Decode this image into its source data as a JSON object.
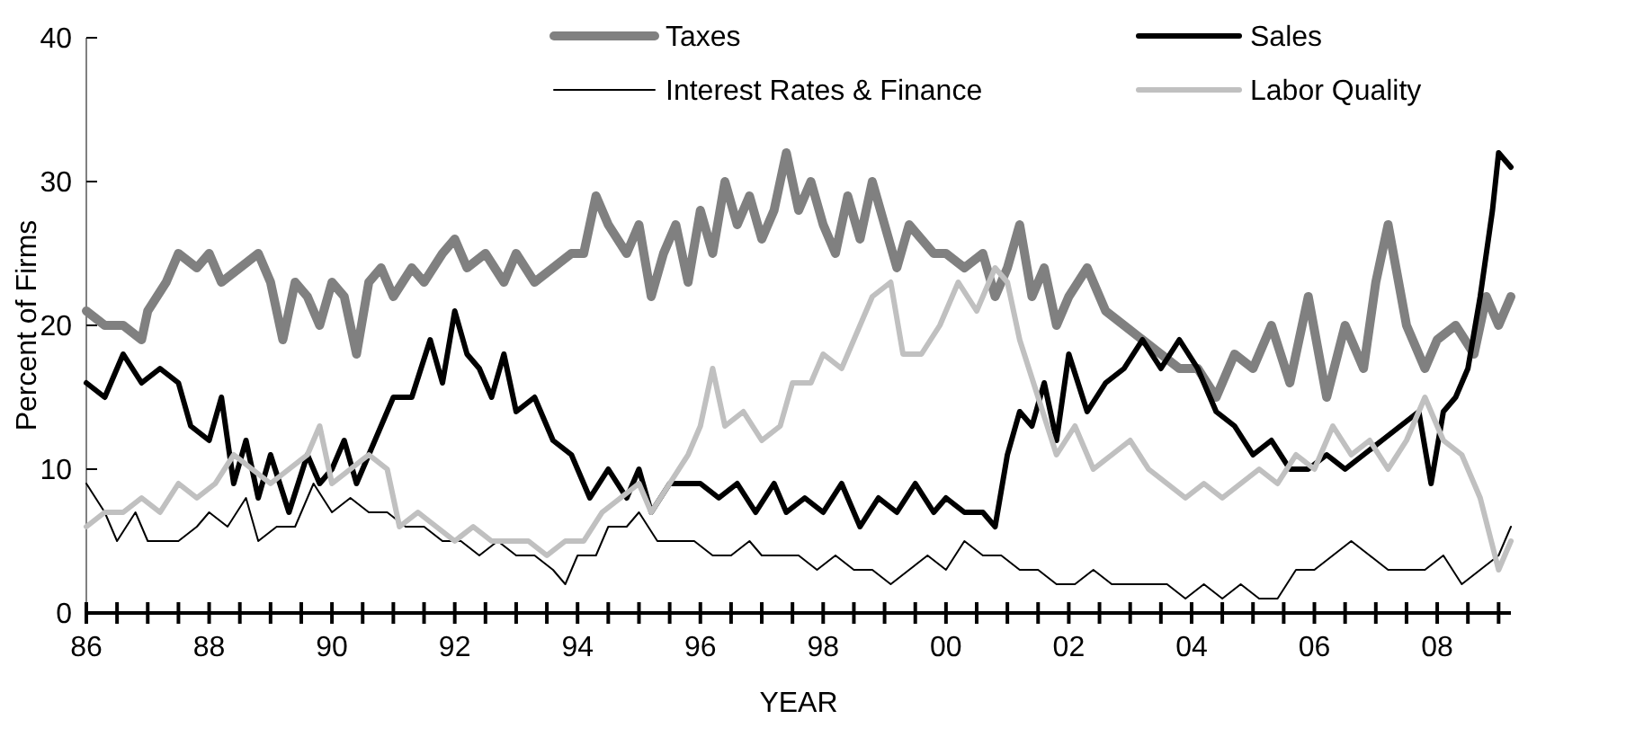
{
  "chart_data": {
    "type": "line",
    "xlabel": "YEAR",
    "ylabel": "Percent of Firms",
    "legend": "top",
    "grid": false,
    "marker": "none",
    "line_style": "solid",
    "xlim": [
      1986,
      2009.2
    ],
    "ylim": [
      0,
      40
    ],
    "yticks": [
      0,
      10,
      20,
      30,
      40
    ],
    "xticks": [
      {
        "value": 1986,
        "label": "86"
      },
      {
        "value": 1986.5,
        "label": null
      },
      {
        "value": 1987,
        "label": null
      },
      {
        "value": 1987.5,
        "label": null
      },
      {
        "value": 1988,
        "label": "88"
      },
      {
        "value": 1988.5,
        "label": null
      },
      {
        "value": 1989,
        "label": null
      },
      {
        "value": 1989.5,
        "label": null
      },
      {
        "value": 1990,
        "label": "90"
      },
      {
        "value": 1990.5,
        "label": null
      },
      {
        "value": 1991,
        "label": null
      },
      {
        "value": 1991.5,
        "label": null
      },
      {
        "value": 1992,
        "label": "92"
      },
      {
        "value": 1992.5,
        "label": null
      },
      {
        "value": 1993,
        "label": null
      },
      {
        "value": 1993.5,
        "label": null
      },
      {
        "value": 1994,
        "label": "94"
      },
      {
        "value": 1994.5,
        "label": null
      },
      {
        "value": 1995,
        "label": null
      },
      {
        "value": 1995.5,
        "label": null
      },
      {
        "value": 1996,
        "label": "96"
      },
      {
        "value": 1996.5,
        "label": null
      },
      {
        "value": 1997,
        "label": null
      },
      {
        "value": 1997.5,
        "label": null
      },
      {
        "value": 1998,
        "label": "98"
      },
      {
        "value": 1998.5,
        "label": null
      },
      {
        "value": 1999,
        "label": null
      },
      {
        "value": 1999.5,
        "label": null
      },
      {
        "value": 2000,
        "label": "00"
      },
      {
        "value": 2000.5,
        "label": null
      },
      {
        "value": 2001,
        "label": null
      },
      {
        "value": 2001.5,
        "label": null
      },
      {
        "value": 2002,
        "label": "02"
      },
      {
        "value": 2002.5,
        "label": null
      },
      {
        "value": 2003,
        "label": null
      },
      {
        "value": 2003.5,
        "label": null
      },
      {
        "value": 2004,
        "label": "04"
      },
      {
        "value": 2004.5,
        "label": null
      },
      {
        "value": 2005,
        "label": null
      },
      {
        "value": 2005.5,
        "label": null
      },
      {
        "value": 2006,
        "label": "06"
      },
      {
        "value": 2006.5,
        "label": null
      },
      {
        "value": 2007,
        "label": null
      },
      {
        "value": 2007.5,
        "label": null
      },
      {
        "value": 2008,
        "label": "08"
      },
      {
        "value": 2008.5,
        "label": null
      },
      {
        "value": 2009,
        "label": null
      }
    ],
    "series": [
      {
        "name": "Taxes",
        "color": "#808080",
        "x": [
          1986,
          1986.3,
          1986.6,
          1986.9,
          1987,
          1987.3,
          1987.5,
          1987.8,
          1988,
          1988.2,
          1988.5,
          1988.8,
          1989,
          1989.2,
          1989.4,
          1989.6,
          1989.8,
          1990,
          1990.2,
          1990.4,
          1990.6,
          1990.8,
          1991,
          1991.3,
          1991.5,
          1991.8,
          1992,
          1992.2,
          1992.5,
          1992.8,
          1993,
          1993.3,
          1993.6,
          1993.9,
          1994.1,
          1994.3,
          1994.5,
          1994.8,
          1995,
          1995.2,
          1995.4,
          1995.6,
          1995.8,
          1996,
          1996.2,
          1996.4,
          1996.6,
          1996.8,
          1997,
          1997.2,
          1997.4,
          1997.6,
          1997.8,
          1998,
          1998.2,
          1998.4,
          1998.6,
          1998.8,
          1999,
          1999.2,
          1999.4,
          1999.6,
          1999.8,
          2000,
          2000.3,
          2000.6,
          2000.8,
          2001,
          2001.2,
          2001.4,
          2001.6,
          2001.8,
          2002,
          2002.3,
          2002.6,
          2002.9,
          2003.2,
          2003.5,
          2003.8,
          2004.1,
          2004.4,
          2004.7,
          2005,
          2005.3,
          2005.6,
          2005.9,
          2006.2,
          2006.5,
          2006.8,
          2007,
          2007.2,
          2007.5,
          2007.8,
          2008,
          2008.3,
          2008.6,
          2008.8,
          2009,
          2009.2
        ],
        "values": [
          21,
          20,
          20,
          19,
          21,
          23,
          25,
          24,
          25,
          23,
          24,
          25,
          23,
          19,
          23,
          22,
          20,
          23,
          22,
          18,
          23,
          24,
          22,
          24,
          23,
          25,
          26,
          24,
          25,
          23,
          25,
          23,
          24,
          25,
          25,
          29,
          27,
          25,
          27,
          22,
          25,
          27,
          23,
          28,
          25,
          30,
          27,
          29,
          26,
          28,
          32,
          28,
          30,
          27,
          25,
          29,
          26,
          30,
          27,
          24,
          27,
          26,
          25,
          25,
          24,
          25,
          22,
          24,
          27,
          22,
          24,
          20,
          22,
          24,
          21,
          20,
          19,
          18,
          17,
          17,
          15,
          18,
          17,
          20,
          16,
          22,
          15,
          20,
          17,
          23,
          27,
          20,
          17,
          19,
          20,
          18,
          22,
          20,
          22
        ]
      },
      {
        "name": "Sales",
        "color": "#000000",
        "x": [
          1986,
          1986.3,
          1986.6,
          1986.9,
          1987.2,
          1987.5,
          1987.7,
          1988,
          1988.2,
          1988.4,
          1988.6,
          1988.8,
          1989,
          1989.3,
          1989.6,
          1989.8,
          1990,
          1990.2,
          1990.4,
          1990.6,
          1990.8,
          1991,
          1991.3,
          1991.6,
          1991.8,
          1992,
          1992.2,
          1992.4,
          1992.6,
          1992.8,
          1993,
          1993.3,
          1993.6,
          1993.9,
          1994.2,
          1994.5,
          1994.8,
          1995,
          1995.2,
          1995.5,
          1995.8,
          1996,
          1996.3,
          1996.6,
          1996.9,
          1997.2,
          1997.4,
          1997.7,
          1998,
          1998.3,
          1998.6,
          1998.9,
          1999.2,
          1999.5,
          1999.8,
          2000,
          2000.3,
          2000.6,
          2000.8,
          2001,
          2001.2,
          2001.4,
          2001.6,
          2001.8,
          2002,
          2002.3,
          2002.6,
          2002.9,
          2003.2,
          2003.5,
          2003.8,
          2004.1,
          2004.4,
          2004.7,
          2005,
          2005.3,
          2005.6,
          2005.9,
          2006.2,
          2006.5,
          2006.8,
          2007.1,
          2007.4,
          2007.7,
          2007.9,
          2008.1,
          2008.3,
          2008.5,
          2008.7,
          2008.9,
          2009,
          2009.2
        ],
        "values": [
          16,
          15,
          18,
          16,
          17,
          16,
          13,
          12,
          15,
          9,
          12,
          8,
          11,
          7,
          11,
          9,
          10,
          12,
          9,
          11,
          13,
          15,
          15,
          19,
          16,
          21,
          18,
          17,
          15,
          18,
          14,
          15,
          12,
          11,
          8,
          10,
          8,
          10,
          7,
          9,
          9,
          9,
          8,
          9,
          7,
          9,
          7,
          8,
          7,
          9,
          6,
          8,
          7,
          9,
          7,
          8,
          7,
          7,
          6,
          11,
          14,
          13,
          16,
          12,
          18,
          14,
          16,
          17,
          19,
          17,
          19,
          17,
          14,
          13,
          11,
          12,
          10,
          10,
          11,
          10,
          11,
          12,
          13,
          14,
          9,
          14,
          15,
          17,
          22,
          28,
          32,
          31
        ]
      },
      {
        "name": "Interest Rates & Finance",
        "color": "#000000",
        "x": [
          1986,
          1986.3,
          1986.5,
          1986.8,
          1987,
          1987.5,
          1987.8,
          1988,
          1988.3,
          1988.6,
          1988.8,
          1989.1,
          1989.4,
          1989.7,
          1990,
          1990.3,
          1990.6,
          1990.9,
          1991.2,
          1991.5,
          1991.8,
          1992.1,
          1992.4,
          1992.7,
          1993,
          1993.3,
          1993.6,
          1993.8,
          1994,
          1994.3,
          1994.5,
          1994.8,
          1995,
          1995.3,
          1995.6,
          1995.9,
          1996.2,
          1996.5,
          1996.8,
          1997,
          1997.3,
          1997.6,
          1997.9,
          1998.2,
          1998.5,
          1998.8,
          1999.1,
          1999.4,
          1999.7,
          2000,
          2000.3,
          2000.6,
          2000.9,
          2001.2,
          2001.5,
          2001.8,
          2002.1,
          2002.4,
          2002.7,
          2003,
          2003.3,
          2003.6,
          2003.9,
          2004.2,
          2004.5,
          2004.8,
          2005.1,
          2005.4,
          2005.7,
          2006,
          2006.3,
          2006.6,
          2006.9,
          2007.2,
          2007.5,
          2007.8,
          2008.1,
          2008.4,
          2008.7,
          2009,
          2009.2
        ],
        "values": [
          9,
          7,
          5,
          7,
          5,
          5,
          6,
          7,
          6,
          8,
          5,
          6,
          6,
          9,
          7,
          8,
          7,
          7,
          6,
          6,
          5,
          5,
          4,
          5,
          4,
          4,
          3,
          2,
          4,
          4,
          6,
          6,
          7,
          5,
          5,
          5,
          4,
          4,
          5,
          4,
          4,
          4,
          3,
          4,
          3,
          3,
          2,
          3,
          4,
          3,
          5,
          4,
          4,
          3,
          3,
          2,
          2,
          3,
          2,
          2,
          2,
          2,
          1,
          2,
          1,
          2,
          1,
          1,
          3,
          3,
          4,
          5,
          4,
          3,
          3,
          3,
          4,
          2,
          3,
          4,
          6
        ]
      },
      {
        "name": "Labor Quality",
        "color": "#c0c0c0",
        "x": [
          1986,
          1986.3,
          1986.6,
          1986.9,
          1987.2,
          1987.5,
          1987.8,
          1988.1,
          1988.4,
          1988.7,
          1989,
          1989.3,
          1989.6,
          1989.8,
          1990,
          1990.3,
          1990.6,
          1990.9,
          1991.1,
          1991.4,
          1991.7,
          1992,
          1992.3,
          1992.6,
          1992.9,
          1993.2,
          1993.5,
          1993.8,
          1994.1,
          1994.4,
          1994.7,
          1995,
          1995.2,
          1995.5,
          1995.8,
          1996,
          1996.2,
          1996.4,
          1996.7,
          1997,
          1997.3,
          1997.5,
          1997.8,
          1998,
          1998.3,
          1998.5,
          1998.8,
          1999.1,
          1999.3,
          1999.6,
          1999.9,
          2000.2,
          2000.5,
          2000.8,
          2001,
          2001.2,
          2001.5,
          2001.8,
          2002.1,
          2002.4,
          2002.7,
          2003,
          2003.3,
          2003.6,
          2003.9,
          2004.2,
          2004.5,
          2004.8,
          2005.1,
          2005.4,
          2005.7,
          2006,
          2006.3,
          2006.6,
          2006.9,
          2007.2,
          2007.5,
          2007.8,
          2008.1,
          2008.4,
          2008.7,
          2009,
          2009.2
        ],
        "values": [
          6,
          7,
          7,
          8,
          7,
          9,
          8,
          9,
          11,
          10,
          9,
          10,
          11,
          13,
          9,
          10,
          11,
          10,
          6,
          7,
          6,
          5,
          6,
          5,
          5,
          5,
          4,
          5,
          5,
          7,
          8,
          9,
          7,
          9,
          11,
          13,
          17,
          13,
          14,
          12,
          13,
          16,
          16,
          18,
          17,
          19,
          22,
          23,
          18,
          18,
          20,
          23,
          21,
          24,
          23,
          19,
          15,
          11,
          13,
          10,
          11,
          12,
          10,
          9,
          8,
          9,
          8,
          9,
          10,
          9,
          11,
          10,
          13,
          11,
          12,
          10,
          12,
          15,
          12,
          11,
          8,
          3,
          5
        ]
      }
    ]
  }
}
